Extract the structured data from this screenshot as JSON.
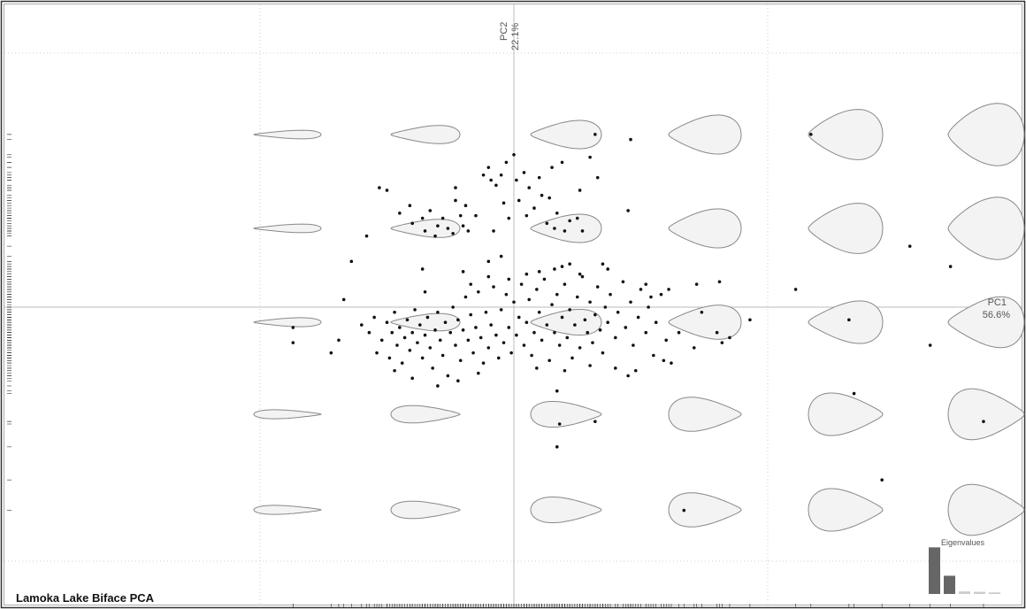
{
  "chart_data": [
    {
      "type": "scatter",
      "title": "Lamoka Lake Biface PCA",
      "xlabel": "PC1",
      "xlabel_variance": "56.6%",
      "ylabel": "PC2",
      "ylabel_variance": "22.1%",
      "xlim": [
        -2,
        2
      ],
      "ylim": [
        -1.15,
        1.2
      ],
      "xticks": [
        -1,
        0,
        1
      ],
      "yticks": [
        -1,
        0,
        1
      ],
      "grid": true,
      "color": "#111111",
      "x": [
        0.32,
        0.46,
        1.17,
        1.56,
        1.72,
        1.11,
        1.32,
        1.64,
        1.85,
        1.34,
        1.45,
        0.67,
        0.18,
        0.32,
        0.17,
        0.17,
        -0.87,
        -0.87,
        0.45,
        -0.58,
        -0.64,
        -0.67,
        -0.72,
        -0.69,
        0.93,
        0.74,
        0.65,
        0.8,
        0.71,
        0.82,
        0.85,
        0.59,
        0.61,
        0.72,
        0.81,
        0.54,
        -0.53,
        -0.5,
        -0.45,
        -0.41,
        -0.4,
        -0.36,
        -0.35,
        -0.33,
        -0.31,
        -0.3,
        -0.28,
        -0.26,
        -0.24,
        -0.23,
        -0.23,
        -0.21,
        -0.2,
        -0.19,
        -0.18,
        -0.15,
        -0.12,
        -0.1,
        -0.09,
        -0.07,
        -0.05,
        -0.04,
        -0.03,
        -0.02,
        0.0,
        0.01,
        0.02,
        0.04,
        0.05,
        0.06,
        0.08,
        0.1,
        0.11,
        0.13,
        0.14,
        0.15,
        0.16,
        0.17,
        0.19,
        0.2,
        0.22,
        0.25,
        0.26,
        0.27,
        0.3,
        0.33,
        -0.08,
        -0.05,
        -0.1,
        -0.36,
        -0.35,
        0.19,
        0.22,
        0.35,
        0.37,
        -0.6,
        -0.57,
        -0.55,
        -0.54,
        -0.52,
        -0.5,
        -0.49,
        -0.48,
        -0.47,
        -0.46,
        -0.45,
        -0.44,
        -0.43,
        -0.42,
        -0.41,
        -0.4,
        -0.39,
        -0.38,
        -0.37,
        -0.36,
        -0.35,
        -0.34,
        -0.33,
        -0.32,
        -0.31,
        -0.3,
        -0.29,
        -0.28,
        -0.27,
        -0.26,
        -0.25,
        -0.24,
        -0.23,
        -0.22,
        -0.21,
        -0.2,
        -0.19,
        -0.18,
        -0.17,
        -0.16,
        -0.15,
        -0.14,
        -0.13,
        -0.12,
        -0.11,
        -0.1,
        -0.09,
        -0.08,
        -0.07,
        -0.06,
        -0.05,
        -0.04,
        -0.03,
        -0.02,
        -0.01,
        0.0,
        0.01,
        0.02,
        0.03,
        0.04,
        0.05,
        0.06,
        0.07,
        0.08,
        0.09,
        0.1,
        0.11,
        0.12,
        0.13,
        0.14,
        0.15,
        0.16,
        0.17,
        0.18,
        0.19,
        0.2,
        0.21,
        0.22,
        0.23,
        0.24,
        0.25,
        0.26,
        0.27,
        0.28,
        0.29,
        0.3,
        0.31,
        0.32,
        0.33,
        0.34,
        0.35,
        0.36,
        0.37,
        0.38,
        0.4,
        0.41,
        0.43,
        0.44,
        0.46,
        0.47,
        0.49,
        0.5,
        0.52,
        0.53,
        0.55,
        0.56,
        0.58,
        0.6,
        0.62,
        0.48,
        0.4,
        0.3,
        -0.4,
        -0.22,
        -0.14,
        0.2,
        -0.02,
        0.05,
        0.1,
        -0.1,
        0.16,
        -0.2,
        0.26,
        -0.3,
        0.45,
        -0.17,
        0.09,
        -0.47,
        0.52
      ],
      "values": [
        0.68,
        0.66,
        0.68,
        0.24,
        0.16,
        0.07,
        -0.05,
        -0.15,
        -0.45,
        -0.34,
        -0.68,
        -0.8,
        -0.46,
        -0.45,
        -0.55,
        -0.33,
        -0.08,
        -0.14,
        0.38,
        0.28,
        0.18,
        0.03,
        -0.18,
        -0.13,
        -0.05,
        -0.02,
        -0.1,
        -0.1,
        -0.16,
        -0.14,
        -0.12,
        -0.21,
        0.07,
        0.09,
        0.1,
        0.04,
        0.47,
        0.46,
        0.37,
        0.4,
        0.33,
        0.35,
        0.3,
        0.38,
        0.28,
        0.32,
        0.35,
        0.31,
        0.29,
        0.42,
        0.47,
        0.36,
        0.32,
        0.4,
        0.3,
        0.36,
        0.52,
        0.55,
        0.5,
        0.48,
        0.52,
        0.41,
        0.57,
        0.35,
        0.6,
        0.5,
        0.42,
        0.53,
        0.36,
        0.47,
        0.39,
        0.51,
        0.44,
        0.33,
        0.43,
        0.55,
        0.31,
        0.37,
        0.57,
        0.3,
        0.34,
        0.35,
        0.46,
        0.3,
        0.59,
        0.51,
        0.3,
        0.2,
        0.18,
        0.15,
        0.06,
        0.16,
        0.17,
        0.17,
        0.15,
        -0.07,
        -0.1,
        -0.04,
        -0.18,
        -0.13,
        -0.06,
        -0.2,
        -0.1,
        -0.02,
        -0.15,
        -0.08,
        -0.22,
        -0.12,
        -0.05,
        -0.17,
        -0.1,
        -0.01,
        -0.14,
        -0.07,
        -0.2,
        -0.11,
        -0.04,
        -0.16,
        -0.24,
        -0.09,
        -0.02,
        -0.13,
        -0.19,
        -0.06,
        -0.27,
        -0.1,
        0.0,
        -0.15,
        -0.05,
        -0.21,
        -0.09,
        0.04,
        -0.13,
        -0.03,
        -0.18,
        -0.08,
        0.06,
        -0.12,
        -0.22,
        -0.02,
        -0.16,
        -0.07,
        0.08,
        -0.11,
        -0.2,
        -0.01,
        -0.14,
        0.05,
        -0.08,
        -0.18,
        0.02,
        -0.11,
        -0.04,
        0.09,
        -0.15,
        -0.06,
        0.03,
        -0.19,
        -0.1,
        0.07,
        -0.02,
        -0.13,
        0.11,
        -0.07,
        -0.21,
        0.01,
        -0.1,
        0.05,
        -0.15,
        -0.04,
        0.09,
        -0.12,
        -0.01,
        -0.2,
        -0.07,
        0.04,
        -0.16,
        0.12,
        -0.05,
        -0.1,
        0.02,
        -0.14,
        -0.03,
        0.08,
        -0.09,
        -0.18,
        0.0,
        -0.06,
        0.05,
        -0.12,
        -0.02,
        0.1,
        -0.08,
        0.02,
        -0.15,
        -0.04,
        0.07,
        -0.1,
        0.0,
        -0.19,
        -0.06,
        0.05,
        -0.13,
        -0.22,
        -0.25,
        -0.24,
        -0.23,
        -0.28,
        -0.29,
        -0.26,
        -0.25,
        0.11,
        0.13,
        0.14,
        0.12,
        0.15,
        0.14,
        0.13,
        -0.31,
        -0.27,
        0.09,
        -0.24,
        -0.25,
        0.09
      ]
    },
    {
      "type": "bar",
      "title": "Eigenvalues",
      "values": [
        56.6,
        22.1,
        3.0,
        2.6,
        1.9
      ],
      "colors": [
        "#666666",
        "#666666",
        "#cccccc",
        "#cccccc",
        "#cccccc"
      ]
    }
  ]
}
